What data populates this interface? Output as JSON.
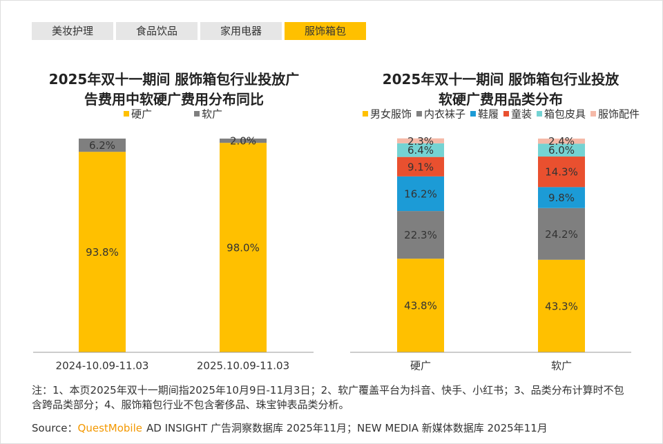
{
  "tabs": [
    {
      "label": "美妆护理",
      "active": false
    },
    {
      "label": "食品饮品",
      "active": false
    },
    {
      "label": "家用电器",
      "active": false
    },
    {
      "label": "服饰箱包",
      "active": true
    }
  ],
  "chart_data": [
    {
      "type": "bar",
      "stacked": true,
      "title": "2025年双十一期间 服饰箱包行业投放广告费用中软硬广费用分布同比",
      "categories": [
        "2024-10.09-11.03",
        "2025.10.09-11.03"
      ],
      "ylim": [
        0,
        100
      ],
      "series": [
        {
          "name": "硬广",
          "color": "#FFC000",
          "values": [
            93.8,
            98.0
          ],
          "value_labels": [
            "93.8%",
            "98.0%"
          ]
        },
        {
          "name": "软广",
          "color": "#7F7F7F",
          "values": [
            6.2,
            2.0
          ],
          "value_labels": [
            "6.2%",
            "2.0%"
          ]
        }
      ]
    },
    {
      "type": "bar",
      "stacked": true,
      "title": "2025年双十一期间 服饰箱包行业投放软硬广费用品类分布",
      "categories": [
        "硬广",
        "软广"
      ],
      "ylim": [
        0,
        100
      ],
      "series": [
        {
          "name": "男女服饰",
          "color": "#FFC000",
          "values": [
            43.8,
            43.3
          ],
          "value_labels": [
            "43.8%",
            "43.3%"
          ]
        },
        {
          "name": "内衣袜子",
          "color": "#7F7F7F",
          "values": [
            22.3,
            24.2
          ],
          "value_labels": [
            "22.3%",
            "24.2%"
          ]
        },
        {
          "name": "鞋履",
          "color": "#1C9BD6",
          "values": [
            16.2,
            9.8
          ],
          "value_labels": [
            "16.2%",
            "9.8%"
          ]
        },
        {
          "name": "童装",
          "color": "#E9502F",
          "values": [
            9.1,
            14.3
          ],
          "value_labels": [
            "9.1%",
            "14.3%"
          ]
        },
        {
          "name": "箱包皮具",
          "color": "#74D3D3",
          "values": [
            6.4,
            6.0
          ],
          "value_labels": [
            "6.4%",
            "6.0%"
          ]
        },
        {
          "name": "服饰配件",
          "color": "#F5B9A8",
          "values": [
            2.3,
            2.4
          ],
          "value_labels": [
            "2.3%",
            "2.4%"
          ]
        }
      ]
    }
  ],
  "note": "注：1、本页2025年双十一期间指2025年10月9日-11月3日；2、软广覆盖平台为抖音、快手、小红书；3、品类分布计算时不包含跨品类部分；4、服饰箱包行业不包含奢侈品、珠宝钟表品类分析。",
  "source": {
    "prefix": "Source：",
    "brand": "QuestMobile",
    "text": "AD INSIGHT 广告洞察数据库 2025年11月；NEW MEDIA 新媒体数据库 2025年11月"
  }
}
